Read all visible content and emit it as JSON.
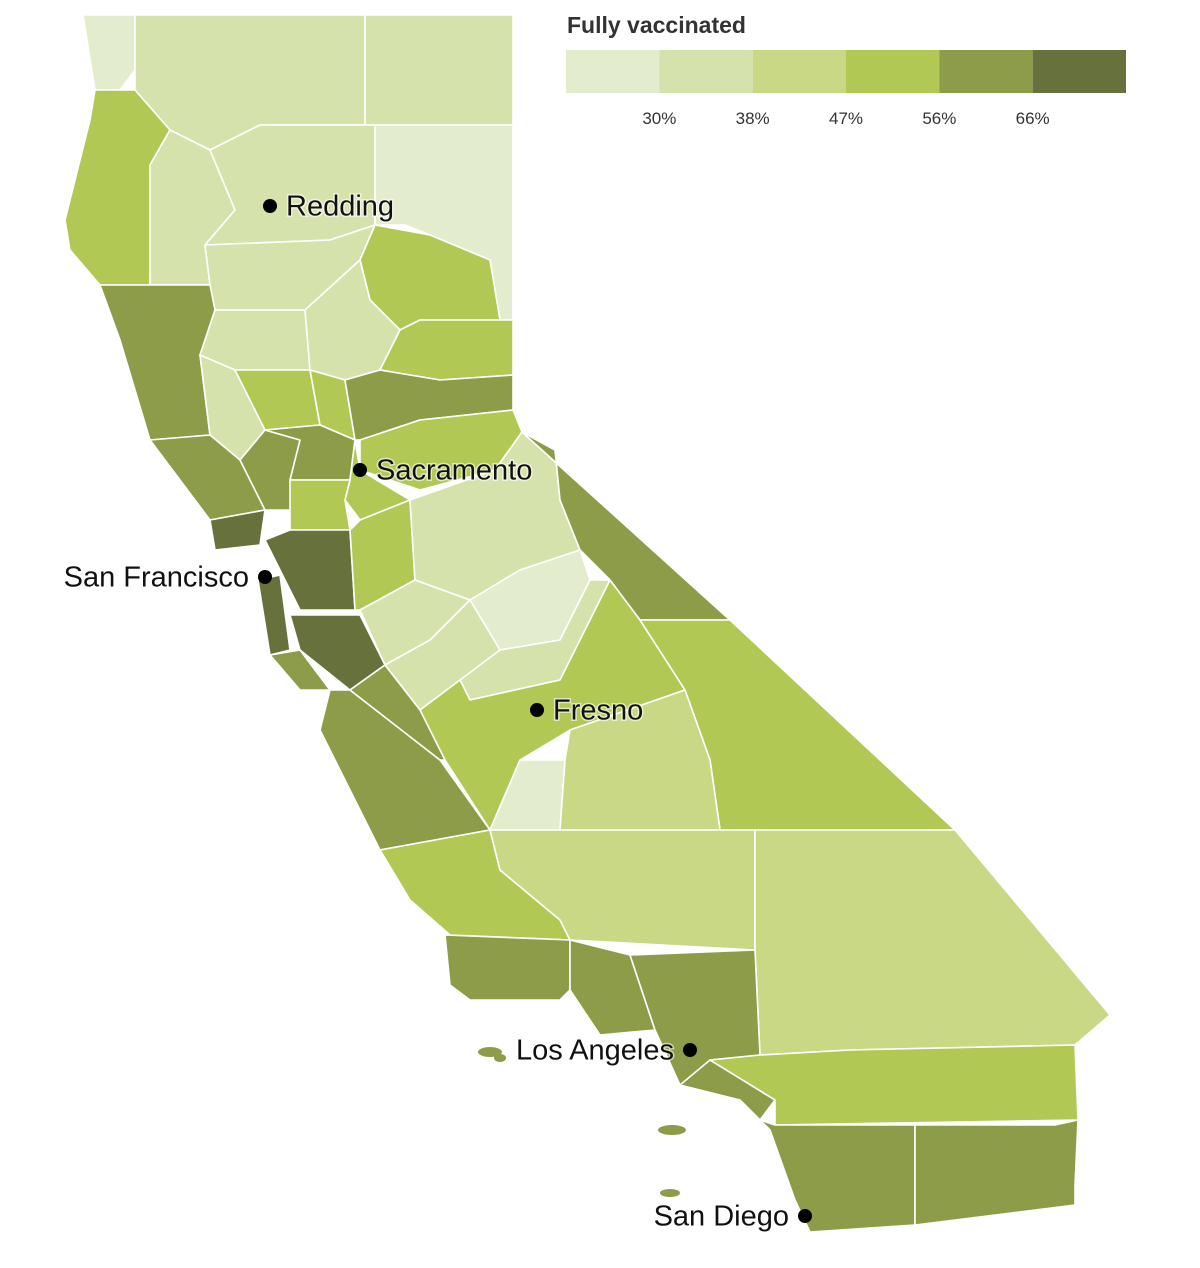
{
  "legend": {
    "title": "Fully vaccinated",
    "colors": [
      "#e4ecce",
      "#d6e2ac",
      "#c8d884",
      "#b2c855",
      "#8c9c48",
      "#66713c"
    ],
    "labels": [
      "30%",
      "38%",
      "47%",
      "56%",
      "66%"
    ]
  },
  "cities": [
    "Redding",
    "Sacramento",
    "San Francisco",
    "Fresno",
    "Los Angeles",
    "San Diego"
  ]
}
